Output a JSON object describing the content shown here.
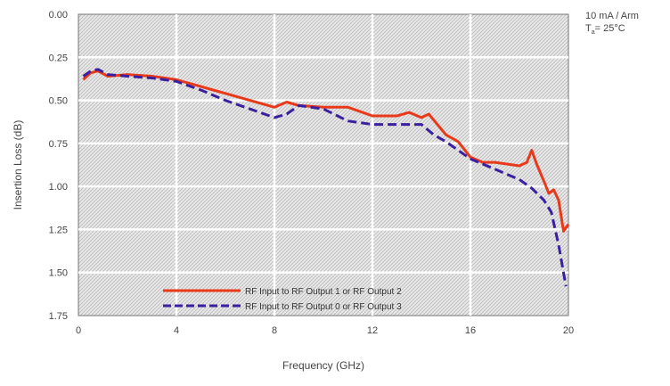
{
  "chart_data": {
    "type": "line",
    "xlabel": "Frequency (GHz)",
    "ylabel": "Insertion Loss (dB)",
    "xlim": [
      0,
      20
    ],
    "ylim": [
      0,
      1.75
    ],
    "y_inverted": true,
    "x_ticks": [
      "0",
      "4",
      "8",
      "12",
      "16",
      "20"
    ],
    "y_ticks": [
      "0.00",
      "0.25",
      "0.50",
      "0.75",
      "1.00",
      "1.25",
      "1.50",
      "1.75"
    ],
    "grid": true,
    "legend_position": "bottom-center",
    "annotations": {
      "line1": "10 mA / Arm",
      "line2_prefix": "T",
      "line2_sub": "a",
      "line2_suffix": "= 25°C"
    },
    "series": [
      {
        "name": "RF Input to RF Output 1 or RF Output 2",
        "color": "#e8391a",
        "style": "solid",
        "points": [
          [
            0.2,
            0.38
          ],
          [
            0.5,
            0.34
          ],
          [
            0.8,
            0.33
          ],
          [
            1.2,
            0.36
          ],
          [
            2,
            0.35
          ],
          [
            3,
            0.36
          ],
          [
            4,
            0.38
          ],
          [
            5,
            0.42
          ],
          [
            5.5,
            0.44
          ],
          [
            6,
            0.46
          ],
          [
            7,
            0.5
          ],
          [
            8,
            0.54
          ],
          [
            8.5,
            0.51
          ],
          [
            9,
            0.53
          ],
          [
            10,
            0.54
          ],
          [
            11,
            0.54
          ],
          [
            12,
            0.59
          ],
          [
            13,
            0.59
          ],
          [
            13.5,
            0.57
          ],
          [
            14,
            0.6
          ],
          [
            14.3,
            0.58
          ],
          [
            15,
            0.7
          ],
          [
            15.5,
            0.74
          ],
          [
            16,
            0.83
          ],
          [
            16.5,
            0.86
          ],
          [
            17,
            0.86
          ],
          [
            18,
            0.88
          ],
          [
            18.3,
            0.86
          ],
          [
            18.5,
            0.79
          ],
          [
            18.7,
            0.87
          ],
          [
            19,
            0.97
          ],
          [
            19.2,
            1.04
          ],
          [
            19.4,
            1.02
          ],
          [
            19.6,
            1.08
          ],
          [
            19.8,
            1.26
          ],
          [
            20,
            1.22
          ]
        ]
      },
      {
        "name": "RF Input to RF Output 0 or RF Output 3",
        "color": "#3a1fa0",
        "style": "dashed",
        "points": [
          [
            0.2,
            0.36
          ],
          [
            0.5,
            0.33
          ],
          [
            0.8,
            0.32
          ],
          [
            1.2,
            0.35
          ],
          [
            2,
            0.36
          ],
          [
            3,
            0.37
          ],
          [
            4,
            0.39
          ],
          [
            5,
            0.44
          ],
          [
            6,
            0.5
          ],
          [
            7,
            0.55
          ],
          [
            8,
            0.6
          ],
          [
            8.5,
            0.58
          ],
          [
            9,
            0.53
          ],
          [
            10,
            0.55
          ],
          [
            11,
            0.62
          ],
          [
            12,
            0.64
          ],
          [
            13,
            0.64
          ],
          [
            14,
            0.64
          ],
          [
            14.5,
            0.7
          ],
          [
            15,
            0.74
          ],
          [
            16,
            0.84
          ],
          [
            17,
            0.9
          ],
          [
            18,
            0.96
          ],
          [
            18.5,
            1.01
          ],
          [
            19,
            1.08
          ],
          [
            19.3,
            1.15
          ],
          [
            19.6,
            1.34
          ],
          [
            19.9,
            1.58
          ]
        ]
      }
    ]
  }
}
